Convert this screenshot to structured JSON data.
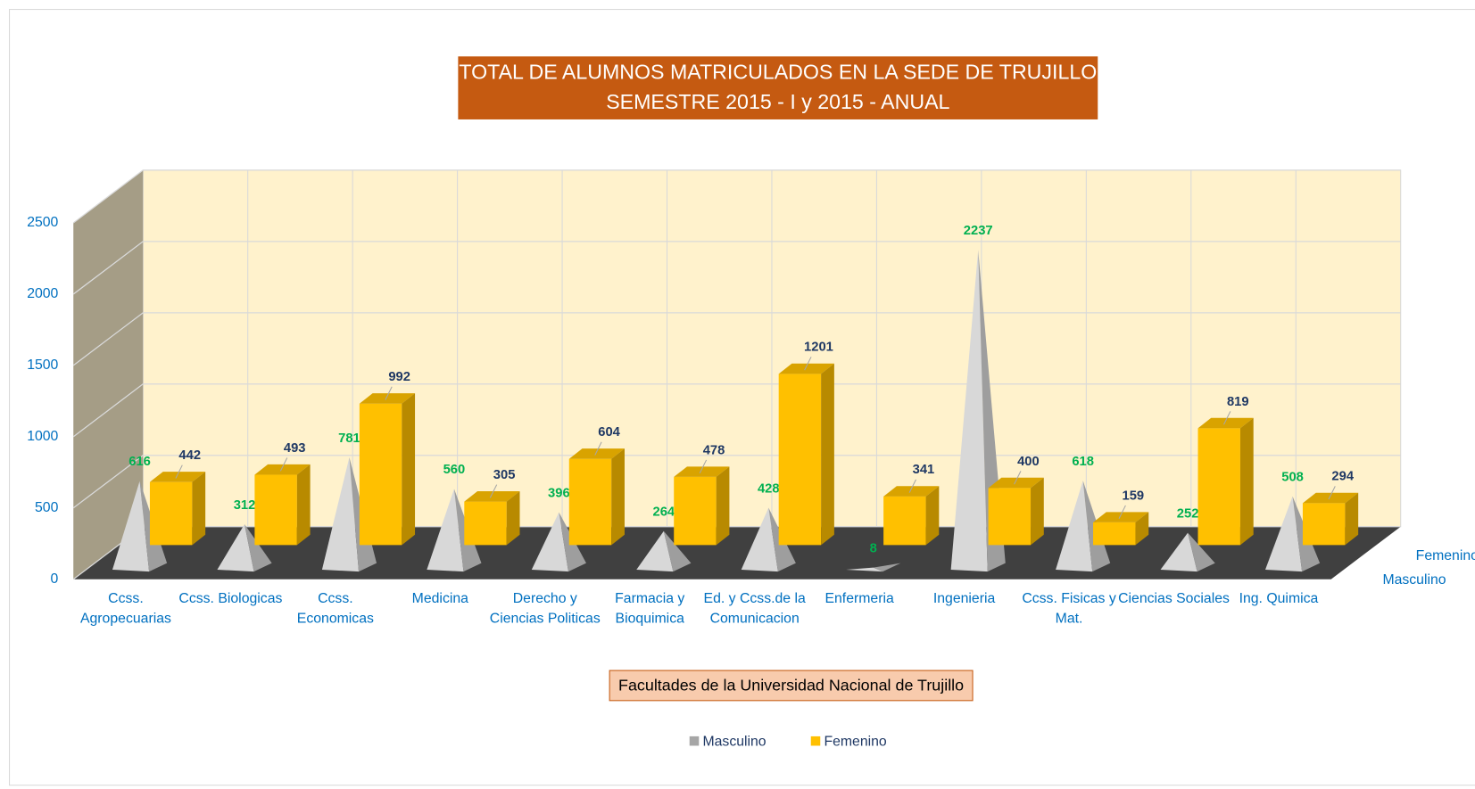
{
  "chart_data": {
    "type": "bar3d",
    "title": "TOTAL DE ALUMNOS MATRICULADOS EN LA SEDE DE TRUJILLO",
    "subtitle": "SEMESTRE 2015 - I  y  2015 - ANUAL",
    "x_label": "Facultades de la Universidad Nacional de Trujillo",
    "categories": [
      "Ccss. Agropecuarias",
      "Ccss. Biologicas",
      "Ccss. Economicas",
      "Medicina",
      "Derecho y Ciencias Politicas",
      "Farmacia y Bioquimica",
      "Ed. y Ccss.de la Comunicacion",
      "Enfermeria",
      "Ingenieria",
      "Ccss. Fisicas y Mat.",
      "Ciencias Sociales",
      "Ing. Quimica"
    ],
    "series": [
      {
        "name": "Masculino",
        "color": "#a6a6a6",
        "label_color": "#00b050",
        "shape": "pyramid",
        "values": [
          616,
          312,
          781,
          560,
          396,
          264,
          428,
          8,
          2237,
          618,
          252,
          508
        ]
      },
      {
        "name": "Femenino",
        "color": "#ffc000",
        "label_color": "#1f3864",
        "shape": "box",
        "values": [
          442,
          493,
          992,
          305,
          604,
          478,
          1201,
          341,
          400,
          159,
          819,
          294
        ]
      }
    ],
    "ylim": [
      0,
      2500
    ],
    "yticks": [
      0,
      500,
      1000,
      1500,
      2000,
      2500
    ],
    "grid": true,
    "legend": "bottom"
  }
}
